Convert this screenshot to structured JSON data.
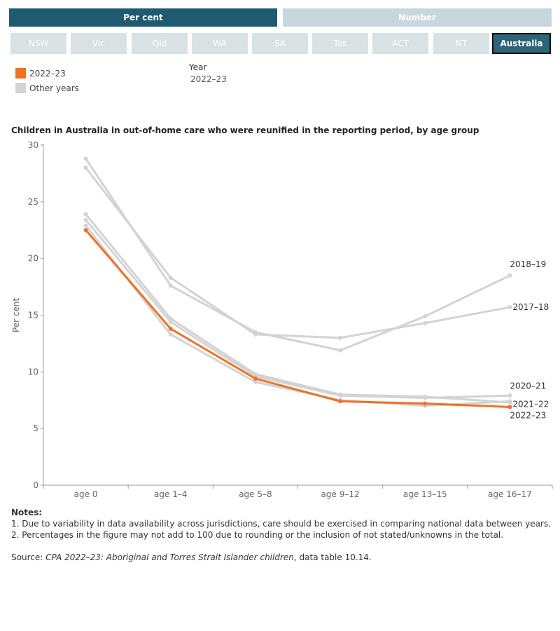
{
  "toggles": {
    "percent_label": "Per cent",
    "number_label": "Number"
  },
  "jurisdictions": [
    "NSW",
    "Vic",
    "Qld",
    "WA",
    "SA",
    "Tas",
    "ACT",
    "NT",
    "Australia"
  ],
  "legend": {
    "current_label": "2022–23",
    "other_label": "Other years"
  },
  "year_filter": {
    "label": "Year",
    "value": "2022–23"
  },
  "colors": {
    "highlight": "#f07125",
    "other": "#d3d3d3",
    "active_button": "#1e5b70"
  },
  "chart_data": {
    "type": "line",
    "title": "Children in Australia in out-of-home care who were reunified in the reporting period, by age group",
    "ylabel": "Per cent",
    "xlabel": "",
    "categories": [
      "age 0",
      "age 1–4",
      "age 5–8",
      "age 9–12",
      "age 13–15",
      "age 16–17"
    ],
    "ylim": [
      0,
      30
    ],
    "yticks": [
      0,
      5,
      10,
      15,
      20,
      25,
      30
    ],
    "grid": false,
    "series": [
      {
        "name": "2017–18",
        "values": [
          28.0,
          18.3,
          13.3,
          13.0,
          14.3,
          15.7
        ],
        "highlight": false
      },
      {
        "name": "2018–19",
        "values": [
          28.8,
          17.6,
          13.5,
          11.9,
          14.9,
          18.5
        ],
        "highlight": false
      },
      {
        "name": "2019–20",
        "values": [
          23.9,
          14.7,
          9.8,
          8.0,
          7.8,
          7.3
        ],
        "highlight": false
      },
      {
        "name": "2020–21",
        "values": [
          23.4,
          14.4,
          9.6,
          7.9,
          7.7,
          7.9
        ],
        "highlight": false
      },
      {
        "name": "2021–22",
        "values": [
          22.9,
          13.3,
          9.1,
          7.5,
          7.0,
          7.4
        ],
        "highlight": false
      },
      {
        "name": "2022–23",
        "values": [
          22.5,
          13.8,
          9.4,
          7.4,
          7.2,
          6.9
        ],
        "highlight": true
      }
    ],
    "end_labels": [
      "2018–19",
      "2017–18",
      "2020–21",
      "2021–22",
      "2022–23"
    ]
  },
  "notes": {
    "heading": "Notes:",
    "items": [
      "1. Due to variability in data availability across jurisdictions, care should be exercised in comparing national data between years.",
      "2. Percentages in the figure may not add to 100 due to rounding or the inclusion of not stated/unknowns in the total."
    ]
  },
  "source": {
    "prefix": "Source: ",
    "title": "CPA 2022–23: Aboriginal and Torres Strait Islander children",
    "suffix": ", data table 10.14."
  }
}
